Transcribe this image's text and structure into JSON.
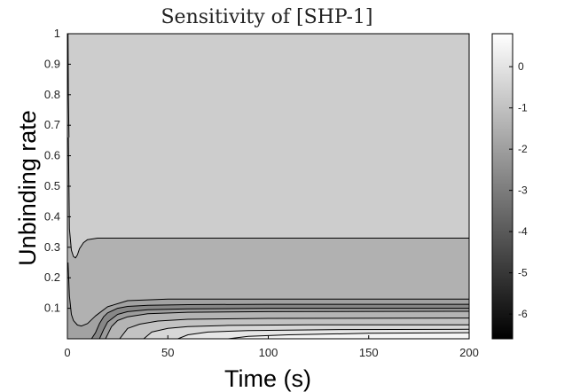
{
  "chart_data": {
    "type": "heatmap",
    "subtype": "filled-contour",
    "title": "Sensitivity of [SHP-1]",
    "xlabel": "Time (s)",
    "ylabel": "Unbinding rate",
    "xlim": [
      0,
      200
    ],
    "ylim": [
      0,
      1
    ],
    "xticks": [
      0,
      50,
      100,
      150,
      200
    ],
    "yticks": [
      0.1,
      0.2,
      0.3,
      0.4,
      0.5,
      0.6,
      0.7,
      0.8,
      0.9,
      1
    ],
    "colormap": "gray",
    "colorbar": {
      "position": "right",
      "range": [
        -6.6,
        0.8
      ],
      "ticks": [
        0,
        -1,
        -2,
        -3,
        -4,
        -5,
        -6
      ]
    },
    "regions": [
      {
        "fill": "#cdcdcd",
        "value": -1.0,
        "x": [
          0,
          200,
          200,
          0
        ],
        "y": [
          1,
          1,
          0,
          0
        ]
      },
      {
        "fill": "#b1b1b1",
        "value": -1.6,
        "x": [
          0.5,
          1,
          2,
          3,
          4,
          5,
          6,
          8,
          10,
          15,
          25,
          50,
          100,
          200,
          200,
          0.5
        ],
        "y": [
          0.66,
          0.36,
          0.29,
          0.27,
          0.265,
          0.275,
          0.295,
          0.315,
          0.325,
          0.33,
          0.33,
          0.33,
          0.33,
          0.33,
          0,
          0
        ]
      },
      {
        "fill": "#a2a2a2",
        "value": -2.0,
        "x": [
          0.3,
          1,
          2,
          3,
          5,
          7,
          10,
          14,
          20,
          30,
          50,
          100,
          200,
          200,
          0.3
        ],
        "y": [
          0.25,
          0.14,
          0.08,
          0.06,
          0.045,
          0.042,
          0.05,
          0.075,
          0.105,
          0.125,
          0.13,
          0.13,
          0.13,
          0,
          0
        ]
      },
      {
        "fill": "#878787",
        "value": -3.0,
        "x": [
          12,
          14,
          16,
          18,
          20,
          25,
          30,
          40,
          60,
          100,
          200,
          200,
          12
        ],
        "y": [
          0,
          0.02,
          0.05,
          0.072,
          0.085,
          0.1,
          0.106,
          0.11,
          0.112,
          0.113,
          0.113,
          0,
          0
        ]
      },
      {
        "fill": "#9c9c9c",
        "value": -2.6,
        "x": [
          16,
          18,
          20,
          25,
          30,
          40,
          60,
          100,
          200,
          200,
          16
        ],
        "y": [
          0,
          0.03,
          0.055,
          0.08,
          0.089,
          0.095,
          0.098,
          0.1,
          0.1,
          0,
          0
        ]
      },
      {
        "fill": "#b4b4b4",
        "value": -1.9,
        "x": [
          19,
          22,
          25,
          30,
          40,
          60,
          100,
          200,
          200,
          19
        ],
        "y": [
          0,
          0.04,
          0.06,
          0.072,
          0.082,
          0.087,
          0.089,
          0.09,
          0,
          0
        ]
      },
      {
        "fill": "#c3c3c3",
        "value": -1.4,
        "x": [
          26,
          30,
          36,
          45,
          60,
          100,
          200,
          200,
          26
        ],
        "y": [
          0,
          0.034,
          0.048,
          0.058,
          0.064,
          0.067,
          0.068,
          0,
          0
        ]
      },
      {
        "fill": "#d7d7d7",
        "value": -0.8,
        "x": [
          38,
          42,
          50,
          60,
          80,
          120,
          200,
          200,
          38
        ],
        "y": [
          0,
          0.022,
          0.034,
          0.04,
          0.044,
          0.046,
          0.046,
          0,
          0
        ]
      },
      {
        "fill": "#e6e6e6",
        "value": -0.3,
        "x": [
          55,
          60,
          70,
          90,
          130,
          200,
          200,
          55
        ],
        "y": [
          0,
          0.013,
          0.022,
          0.027,
          0.03,
          0.031,
          0,
          0
        ]
      },
      {
        "fill": "#f4f4f4",
        "value": 0.3,
        "x": [
          80,
          90,
          110,
          150,
          200,
          200,
          80
        ],
        "y": [
          0,
          0.008,
          0.013,
          0.018,
          0.02,
          0,
          0
        ]
      }
    ],
    "contour_lines": [
      {
        "x": [
          0.5,
          1,
          2,
          3,
          4,
          5,
          6,
          8,
          10,
          15,
          25,
          50,
          100,
          200
        ],
        "y": [
          0.66,
          0.36,
          0.29,
          0.27,
          0.265,
          0.275,
          0.295,
          0.315,
          0.325,
          0.33,
          0.33,
          0.33,
          0.33,
          0.33
        ]
      },
      {
        "x": [
          0.3,
          1,
          2,
          3,
          5,
          7,
          10,
          14,
          20,
          30,
          50,
          100,
          200
        ],
        "y": [
          0.25,
          0.14,
          0.08,
          0.06,
          0.045,
          0.042,
          0.05,
          0.075,
          0.105,
          0.125,
          0.13,
          0.13,
          0.13
        ]
      },
      {
        "x": [
          12,
          14,
          16,
          18,
          20,
          25,
          30,
          40,
          60,
          100,
          200
        ],
        "y": [
          0,
          0.02,
          0.05,
          0.072,
          0.085,
          0.1,
          0.106,
          0.11,
          0.112,
          0.113,
          0.113
        ]
      },
      {
        "x": [
          16,
          18,
          20,
          25,
          30,
          40,
          60,
          100,
          200
        ],
        "y": [
          0,
          0.03,
          0.055,
          0.08,
          0.089,
          0.095,
          0.098,
          0.1,
          0.1
        ]
      },
      {
        "x": [
          19,
          22,
          25,
          30,
          40,
          60,
          100,
          200
        ],
        "y": [
          0,
          0.04,
          0.06,
          0.072,
          0.082,
          0.087,
          0.089,
          0.09
        ]
      },
      {
        "x": [
          26,
          30,
          36,
          45,
          60,
          100,
          200
        ],
        "y": [
          0,
          0.034,
          0.048,
          0.058,
          0.064,
          0.067,
          0.068
        ]
      },
      {
        "x": [
          38,
          42,
          50,
          60,
          80,
          120,
          200
        ],
        "y": [
          0,
          0.022,
          0.034,
          0.04,
          0.044,
          0.046,
          0.046
        ]
      },
      {
        "x": [
          55,
          60,
          70,
          90,
          130,
          200
        ],
        "y": [
          0,
          0.013,
          0.022,
          0.027,
          0.03,
          0.031
        ]
      },
      {
        "x": [
          80,
          90,
          110,
          150,
          200
        ],
        "y": [
          0,
          0.008,
          0.013,
          0.018,
          0.02
        ]
      },
      {
        "x": [
          0.3,
          0.5,
          0.8
        ],
        "y": [
          1,
          0.8,
          0.66
        ]
      }
    ]
  }
}
